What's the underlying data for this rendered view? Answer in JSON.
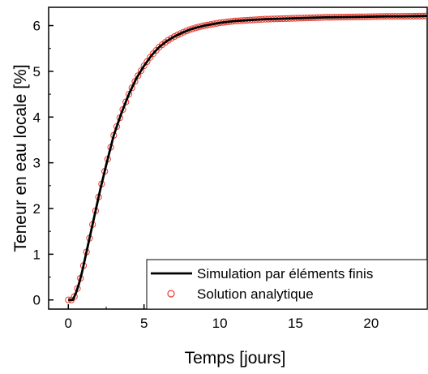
{
  "chart_data": {
    "type": "line",
    "title": "",
    "xlabel": "Temps [jours]",
    "ylabel": "Teneur en eau locale [%]",
    "xlim": [
      -1.3,
      23.7
    ],
    "ylim": [
      -0.2,
      6.4
    ],
    "x_ticks": [
      "0",
      "5",
      "10",
      "15",
      "20"
    ],
    "y_ticks": [
      "0",
      "1",
      "2",
      "3",
      "4",
      "5",
      "6"
    ],
    "grid": false,
    "legend_position": "bottom-right",
    "series": [
      {
        "name": "Simulation par éléments finis",
        "style": "line",
        "color": "#000000",
        "x": [
          0,
          0.3,
          0.5,
          0.7,
          0.9,
          1.1,
          1.3,
          1.5,
          1.8,
          2.1,
          2.5,
          3.0,
          3.5,
          4.0,
          4.5,
          5.0,
          5.5,
          6.0,
          6.5,
          7.0,
          7.5,
          8.0,
          8.5,
          9.0,
          9.5,
          10,
          11,
          12,
          13,
          14,
          15,
          16,
          17,
          18,
          19,
          20,
          21,
          22,
          23.7
        ],
        "y": [
          0,
          0,
          0.15,
          0.35,
          0.6,
          0.9,
          1.2,
          1.5,
          1.95,
          2.4,
          2.95,
          3.6,
          4.08,
          4.5,
          4.85,
          5.12,
          5.35,
          5.53,
          5.66,
          5.76,
          5.84,
          5.91,
          5.96,
          6.0,
          6.03,
          6.06,
          6.1,
          6.12,
          6.14,
          6.15,
          6.16,
          6.17,
          6.18,
          6.185,
          6.19,
          6.195,
          6.2,
          6.2,
          6.21
        ]
      },
      {
        "name": "Solution analytique",
        "style": "markers",
        "marker": "open-circle",
        "color": "#e8392b",
        "x": [
          0,
          0.3,
          0.5,
          0.7,
          0.9,
          1.1,
          1.3,
          1.5,
          1.8,
          2.1,
          2.5,
          3.0,
          3.5,
          4.0,
          4.5,
          5.0,
          5.5,
          6.0,
          6.5,
          7.0,
          7.5,
          8.0,
          8.5,
          9.0,
          9.5,
          10,
          11,
          12,
          13,
          14,
          15,
          16,
          17,
          18,
          19,
          20,
          21,
          22,
          23.7
        ],
        "y": [
          0,
          0,
          0.15,
          0.35,
          0.6,
          0.9,
          1.2,
          1.5,
          1.95,
          2.4,
          2.95,
          3.6,
          4.08,
          4.5,
          4.85,
          5.12,
          5.35,
          5.53,
          5.66,
          5.76,
          5.84,
          5.91,
          5.96,
          6.0,
          6.03,
          6.06,
          6.1,
          6.12,
          6.14,
          6.15,
          6.16,
          6.17,
          6.18,
          6.185,
          6.19,
          6.195,
          6.2,
          6.2,
          6.21
        ]
      }
    ]
  }
}
